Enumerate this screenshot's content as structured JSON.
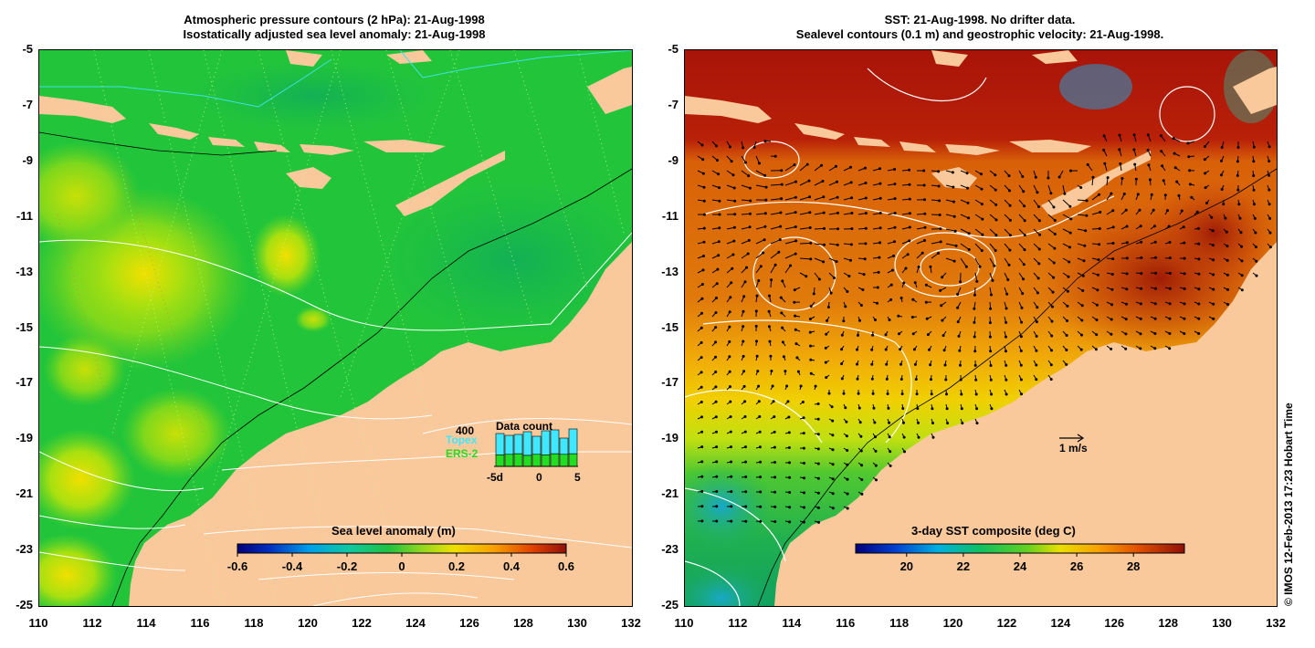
{
  "left_panel": {
    "title_line1": "Atmospheric pressure contours (2 hPa): 21-Aug-1998",
    "title_line2": "Isostatically adjusted sea level anomaly: 21-Aug-1998",
    "colorbar_label": "Sea level anomaly (m)",
    "colorbar_ticks": [
      "-0.6",
      "-0.4",
      "-0.2",
      "0",
      "0.2",
      "0.4",
      "0.6"
    ],
    "data_count": {
      "title": "Data count",
      "max_label": "400",
      "topex_label": "Topex",
      "ers2_label": "ERS-2",
      "axis_labels": [
        "-5d",
        "0",
        "5"
      ],
      "topex_values": [
        360,
        340,
        350,
        380,
        330,
        390,
        400,
        310,
        410
      ],
      "ers2_values": [
        210,
        220,
        230,
        200,
        220,
        210,
        230,
        220,
        230
      ]
    }
  },
  "right_panel": {
    "title_line1": "SST: 21-Aug-1998. No drifter data.",
    "title_line2": "Sealevel contours (0.1 m) and geostrophic velocity: 21-Aug-1998.",
    "colorbar_label": "3-day SST composite (deg C)",
    "colorbar_ticks": [
      "20",
      "22",
      "24",
      "26",
      "28"
    ],
    "scale_label": "1 m/s"
  },
  "axes": {
    "lat_ticks": [
      "-5",
      "-7",
      "-9",
      "-11",
      "-13",
      "-15",
      "-17",
      "-19",
      "-21",
      "-23",
      "-25"
    ],
    "lon_ticks": [
      "110",
      "112",
      "114",
      "116",
      "118",
      "120",
      "122",
      "124",
      "126",
      "128",
      "130",
      "132"
    ]
  },
  "credit": "© IMOS 12-Feb-2013 17:23 Hobart Time",
  "colors": {
    "land": "#f9c89b",
    "sla_base": "#22c53a",
    "sst_warm": "#d85a08",
    "sst_hot": "#a81408"
  }
}
